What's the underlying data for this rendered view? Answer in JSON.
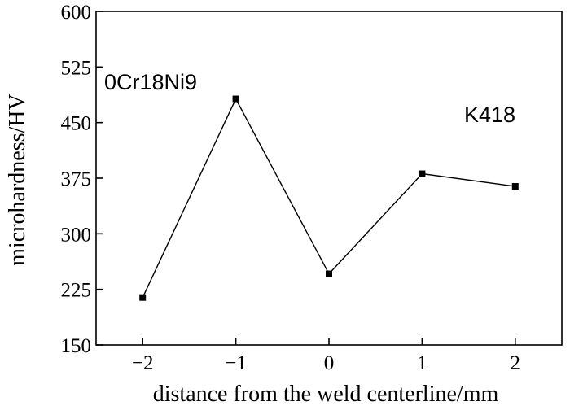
{
  "chart_data": {
    "type": "line",
    "title": "",
    "xlabel": "distance from the weld centerline/mm",
    "ylabel": "microhardness/HV",
    "xlim": [
      -2.5,
      2.5
    ],
    "ylim": [
      150,
      600
    ],
    "xticks": [
      -2,
      -1,
      0,
      1,
      2
    ],
    "xtick_labels": [
      "−2",
      "−1",
      "0",
      "1",
      "2"
    ],
    "yticks": [
      150,
      225,
      300,
      375,
      450,
      525,
      600
    ],
    "ytick_labels": [
      "150",
      "225",
      "300",
      "375",
      "450",
      "525",
      "600"
    ],
    "grid": false,
    "series": [
      {
        "x": [
          -2,
          -1,
          0,
          1,
          2
        ],
        "y": [
          214,
          482,
          246,
          381,
          364
        ],
        "color": "#000000",
        "marker": "square"
      }
    ],
    "annotations": [
      {
        "text": "0Cr18Ni9"
      },
      {
        "text": "K418"
      }
    ]
  }
}
